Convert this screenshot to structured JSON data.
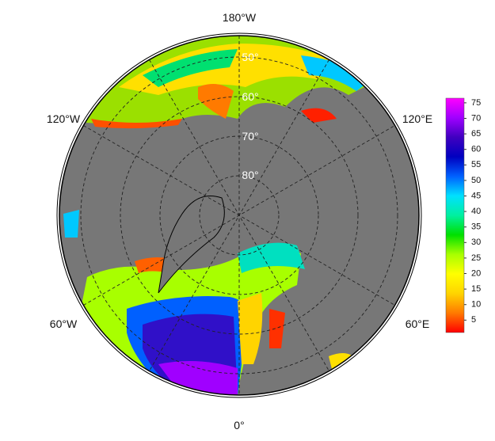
{
  "map": {
    "longitude_labels": [
      "180°W",
      "120°W",
      "120°E",
      "60°W",
      "60°E",
      "0°"
    ],
    "latitude_labels": [
      "50°",
      "60°",
      "70°",
      "80°"
    ],
    "colorbar": {
      "range": [
        1,
        76.5
      ],
      "ticks": [
        5,
        10,
        15,
        20,
        25,
        30,
        35,
        40,
        45,
        50,
        55,
        60,
        65,
        70,
        75
      ],
      "colors": [
        "#ff0000",
        "#ff7a00",
        "#ffd400",
        "#ffff00",
        "#a8ff00",
        "#00e000",
        "#00f0a0",
        "#00e0ff",
        "#0060ff",
        "#0000c0",
        "#4000c0",
        "#a000ff",
        "#ff00ff"
      ]
    }
  }
}
